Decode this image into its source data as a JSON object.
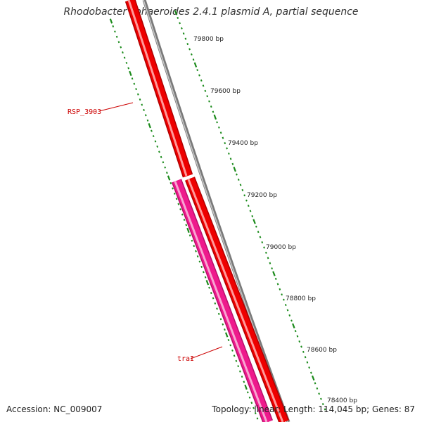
{
  "title": "Rhodobacter sphaeroides 2.4.1 plasmid A, partial sequence",
  "footer": {
    "accession": "Accession: NC_009007",
    "stats": "Topology: linear; Length: 114,045 bp; Genes: 87"
  },
  "colors": {
    "backbone": "#7a7a7a",
    "gene_forward": "#ee0000",
    "gene_reverse": "#ee1a8c",
    "ticks": "#1a8a1a",
    "gene_label": "#cc0000"
  },
  "ruler": {
    "labels": [
      "79800 bp",
      "79600 bp",
      "79400 bp",
      "79200 bp",
      "79000 bp",
      "78800 bp",
      "78600 bp",
      "78400 bp"
    ]
  },
  "genes": [
    {
      "label": "RSP_3903",
      "strand": "forward"
    },
    {
      "label": "",
      "strand": "forward"
    },
    {
      "label": "traI",
      "strand": "reverse"
    }
  ]
}
